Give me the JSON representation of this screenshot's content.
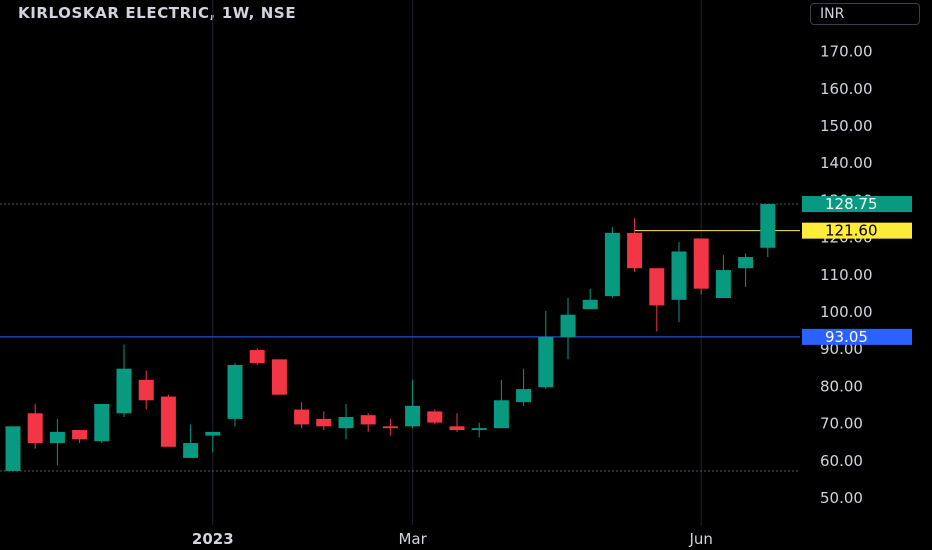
{
  "chart": {
    "title": "KIRLOSKAR ELECTRIC, 1W, NSE",
    "currency": "INR"
  },
  "colors": {
    "background": "#000000",
    "up": "#089981",
    "down": "#f23645",
    "axis_text": "#d1d4dc",
    "support_line": "#2962ff",
    "resistance_line": "#ffeb3b",
    "last_price_tag": "#089981"
  },
  "chart_data": {
    "type": "candlestick",
    "title": "KIRLOSKAR ELECTRIC, 1W, NSE",
    "ylim": [
      40.0,
      174.0
    ],
    "yticks": [
      50,
      60,
      70,
      80,
      90,
      100,
      110,
      120,
      130,
      140,
      150,
      160,
      170
    ],
    "ytick_labels": [
      "50.00",
      "60.00",
      "70.00",
      "80.00",
      "90.00",
      "100.00",
      "110.00",
      "120.00",
      "130.00",
      "140.00",
      "150.00",
      "160.00",
      "170.00"
    ],
    "xtick_labels": [
      {
        "label": "2023",
        "bar_index": 9,
        "bold": true
      },
      {
        "label": "Mar",
        "bar_index": 18,
        "bold": false
      },
      {
        "label": "Jun",
        "bar_index": 31,
        "bold": false
      }
    ],
    "grid": true,
    "candles": [
      {
        "o": 57.0,
        "h": 69.0,
        "l": 57.0,
        "c": 69.0
      },
      {
        "o": 72.5,
        "h": 75.0,
        "l": 63.0,
        "c": 64.5
      },
      {
        "o": 64.5,
        "h": 71.0,
        "l": 58.5,
        "c": 67.5
      },
      {
        "o": 68.0,
        "h": 68.0,
        "l": 64.5,
        "c": 65.5
      },
      {
        "o": 65.0,
        "h": 75.0,
        "l": 64.5,
        "c": 75.0
      },
      {
        "o": 72.5,
        "h": 91.0,
        "l": 71.5,
        "c": 84.5
      },
      {
        "o": 81.5,
        "h": 84.0,
        "l": 73.5,
        "c": 76.0
      },
      {
        "o": 77.0,
        "h": 77.5,
        "l": 63.5,
        "c": 63.5
      },
      {
        "o": 60.5,
        "h": 69.5,
        "l": 60.5,
        "c": 64.5
      },
      {
        "o": 66.5,
        "h": 67.5,
        "l": 62.0,
        "c": 67.5
      },
      {
        "o": 71.0,
        "h": 86.0,
        "l": 69.0,
        "c": 85.5
      },
      {
        "o": 89.5,
        "h": 90.0,
        "l": 85.5,
        "c": 86.0
      },
      {
        "o": 87.0,
        "h": 87.0,
        "l": 77.5,
        "c": 77.5
      },
      {
        "o": 73.5,
        "h": 75.5,
        "l": 68.5,
        "c": 69.5
      },
      {
        "o": 71.0,
        "h": 73.0,
        "l": 68.0,
        "c": 69.0
      },
      {
        "o": 68.5,
        "h": 75.0,
        "l": 65.5,
        "c": 71.5
      },
      {
        "o": 72.0,
        "h": 72.5,
        "l": 67.5,
        "c": 69.5
      },
      {
        "o": 69.0,
        "h": 71.0,
        "l": 66.5,
        "c": 68.5
      },
      {
        "o": 69.0,
        "h": 81.5,
        "l": 68.5,
        "c": 74.5
      },
      {
        "o": 73.0,
        "h": 73.5,
        "l": 69.5,
        "c": 70.0
      },
      {
        "o": 69.0,
        "h": 72.5,
        "l": 67.5,
        "c": 68.0
      },
      {
        "o": 68.0,
        "h": 70.0,
        "l": 66.0,
        "c": 68.5
      },
      {
        "o": 68.5,
        "h": 81.5,
        "l": 68.5,
        "c": 76.0
      },
      {
        "o": 75.5,
        "h": 84.5,
        "l": 74.5,
        "c": 79.0
      },
      {
        "o": 79.5,
        "h": 100.0,
        "l": 79.0,
        "c": 93.0
      },
      {
        "o": 93.0,
        "h": 103.5,
        "l": 87.0,
        "c": 99.0
      },
      {
        "o": 100.5,
        "h": 106.0,
        "l": 100.5,
        "c": 103.0
      },
      {
        "o": 104.0,
        "h": 122.5,
        "l": 103.5,
        "c": 121.0
      },
      {
        "o": 121.0,
        "h": 125.0,
        "l": 110.5,
        "c": 111.5
      },
      {
        "o": 111.5,
        "h": 111.5,
        "l": 94.5,
        "c": 101.5
      },
      {
        "o": 103.0,
        "h": 118.5,
        "l": 97.0,
        "c": 116.0
      },
      {
        "o": 119.5,
        "h": 119.5,
        "l": 104.5,
        "c": 106.0
      },
      {
        "o": 103.5,
        "h": 115.0,
        "l": 103.5,
        "c": 111.0
      },
      {
        "o": 111.5,
        "h": 115.5,
        "l": 106.5,
        "c": 114.5
      },
      {
        "o": 117.0,
        "h": 128.75,
        "l": 114.5,
        "c": 128.75
      }
    ],
    "lines": [
      {
        "name": "support",
        "value": 93.05,
        "label": "93.05"
      },
      {
        "name": "resistance",
        "value": 121.6,
        "label": "121.60",
        "from_bar": 28
      }
    ],
    "last_price": {
      "value": 128.75,
      "label": "128.75"
    },
    "reference_level": 57.0
  }
}
